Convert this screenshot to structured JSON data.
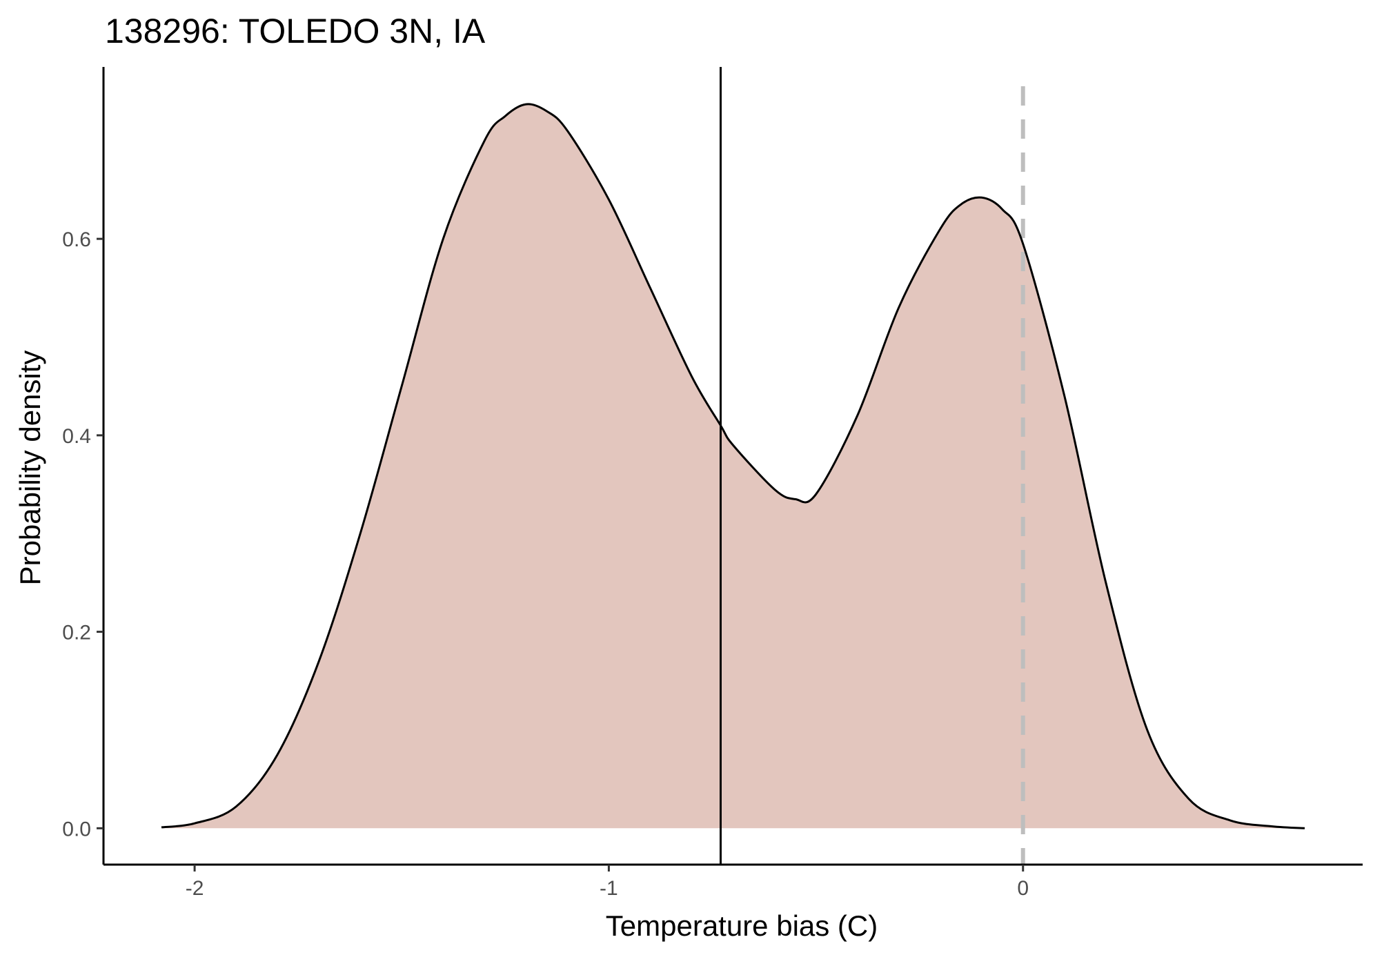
{
  "chart_data": {
    "type": "area",
    "title": "138296: TOLEDO 3N, IA",
    "xlabel": "Temperature bias (C)",
    "ylabel": "Probability density",
    "xlim": [
      -2.22,
      0.82
    ],
    "ylim": [
      -0.037,
      0.775
    ],
    "x_ticks": [
      -2,
      -1,
      0
    ],
    "x_tick_labels": [
      "-2",
      "-1",
      "0"
    ],
    "y_ticks": [
      0.0,
      0.2,
      0.4,
      0.6
    ],
    "y_tick_labels": [
      "0.0",
      "0.2",
      "0.4",
      "0.6"
    ],
    "grid": false,
    "fill_color": "#e3c6be",
    "line_color": "#000000",
    "series": [
      {
        "x": [
          -2.08,
          -2.0,
          -1.9,
          -1.8,
          -1.7,
          -1.6,
          -1.5,
          -1.4,
          -1.3,
          -1.25,
          -1.2,
          -1.15,
          -1.1,
          -1.0,
          -0.9,
          -0.8,
          -0.73,
          -0.7,
          -0.6,
          -0.55,
          -0.5,
          -0.4,
          -0.3,
          -0.2,
          -0.15,
          -0.1,
          -0.05,
          0.0,
          0.1,
          0.2,
          0.3,
          0.4,
          0.5,
          0.6,
          0.68
        ],
        "y": [
          0.001,
          0.005,
          0.022,
          0.075,
          0.17,
          0.3,
          0.45,
          0.6,
          0.7,
          0.725,
          0.737,
          0.73,
          0.71,
          0.64,
          0.55,
          0.46,
          0.41,
          0.39,
          0.345,
          0.335,
          0.34,
          0.42,
          0.53,
          0.61,
          0.635,
          0.642,
          0.63,
          0.595,
          0.44,
          0.25,
          0.1,
          0.03,
          0.008,
          0.002,
          0.0
        ]
      }
    ],
    "vlines": [
      {
        "x": -0.73,
        "style": "solid",
        "color": "#000000"
      },
      {
        "x": 0.0,
        "style": "dashed",
        "color": "#bebebe"
      }
    ]
  }
}
